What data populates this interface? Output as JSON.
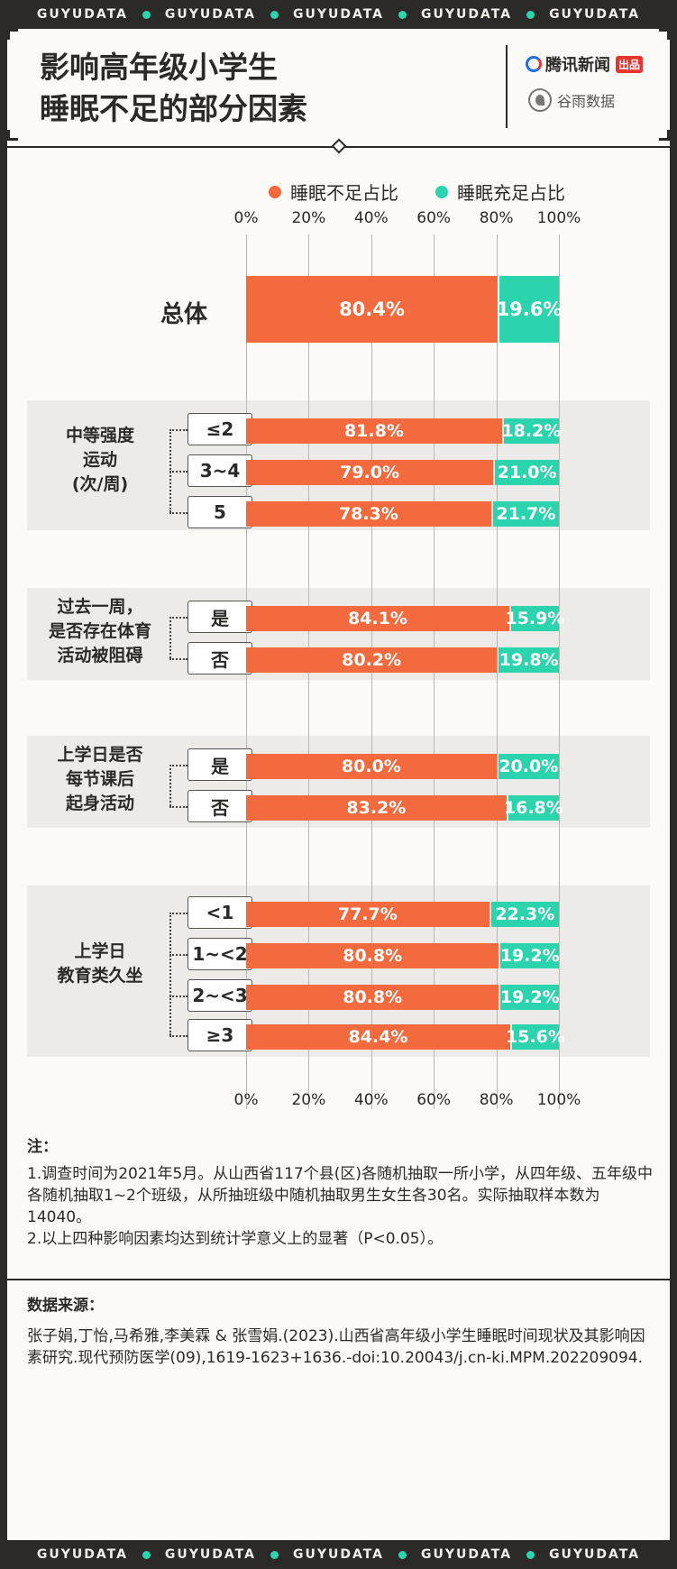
{
  "ticker": [
    "GUYUDATA",
    "GUYUDATA",
    "GUYUDATA",
    "GUYUDATA",
    "GUYUDATA"
  ],
  "title_lines": [
    "影响高年级小学生",
    "睡眠不足的部分因素"
  ],
  "logos": {
    "tencent": "腾讯新闻",
    "tencent_badge": "出品",
    "guyu": "谷雨数据"
  },
  "colors": {
    "insufficient": "#f26a3d",
    "sufficient": "#2cd4ad",
    "background": "#2b2a29"
  },
  "chart_data": {
    "type": "bar",
    "orientation": "horizontal-stacked-100",
    "xlim": [
      0,
      100
    ],
    "ticks": [
      "0%",
      "20%",
      "40%",
      "60%",
      "80%",
      "100%"
    ],
    "legend": [
      "睡眠不足占比",
      "睡眠充足占比"
    ],
    "legend_position": "top-right",
    "overall": {
      "label": "总体",
      "insufficient": 80.4,
      "sufficient": 19.6
    },
    "groups": [
      {
        "label_lines": [
          "中等强度",
          "运动",
          "(次/周)"
        ],
        "rows": [
          {
            "category": "≤2",
            "insufficient": 81.8,
            "sufficient": 18.2
          },
          {
            "category": "3~4",
            "insufficient": 79.0,
            "sufficient": 21.0
          },
          {
            "category": "5",
            "insufficient": 78.3,
            "sufficient": 21.7
          }
        ]
      },
      {
        "label_lines": [
          "过去一周，",
          "是否存在体育",
          "活动被阻碍"
        ],
        "rows": [
          {
            "category": "是",
            "insufficient": 84.1,
            "sufficient": 15.9
          },
          {
            "category": "否",
            "insufficient": 80.2,
            "sufficient": 19.8
          }
        ]
      },
      {
        "label_lines": [
          "上学日是否",
          "每节课后",
          "起身活动"
        ],
        "rows": [
          {
            "category": "是",
            "insufficient": 80.0,
            "sufficient": 20.0
          },
          {
            "category": "否",
            "insufficient": 83.2,
            "sufficient": 16.8
          }
        ]
      },
      {
        "label_lines": [
          "上学日",
          "教育类久坐"
        ],
        "rows": [
          {
            "category": "<1",
            "insufficient": 77.7,
            "sufficient": 22.3
          },
          {
            "category": "1~<2",
            "insufficient": 80.8,
            "sufficient": 19.2
          },
          {
            "category": "2~<3",
            "insufficient": 80.8,
            "sufficient": 19.2
          },
          {
            "category": "≥3",
            "insufficient": 84.4,
            "sufficient": 15.6
          }
        ]
      }
    ]
  },
  "notes": {
    "heading": "注：",
    "lines": [
      "1.调查时间为2021年5月。从山西省117个县(区)各随机抽取一所小学，从四年级、五年级中各随机抽取1~2个班级，从所抽班级中随机抽取男生女生各30名。实际抽取样本数为14040。",
      "2.以上四种影响因素均达到统计学意义上的显著（P<0.05）。"
    ]
  },
  "source": {
    "heading": "数据来源：",
    "text": "张子娟,丁怡,马希雅,李美霖 & 张雪娟.(2023).山西省高年级小学生睡眠时间现状及其影响因素研究.现代预防医学(09),1619-1623+1636.-doi:10.20043/j.cn-ki.MPM.202209094."
  }
}
